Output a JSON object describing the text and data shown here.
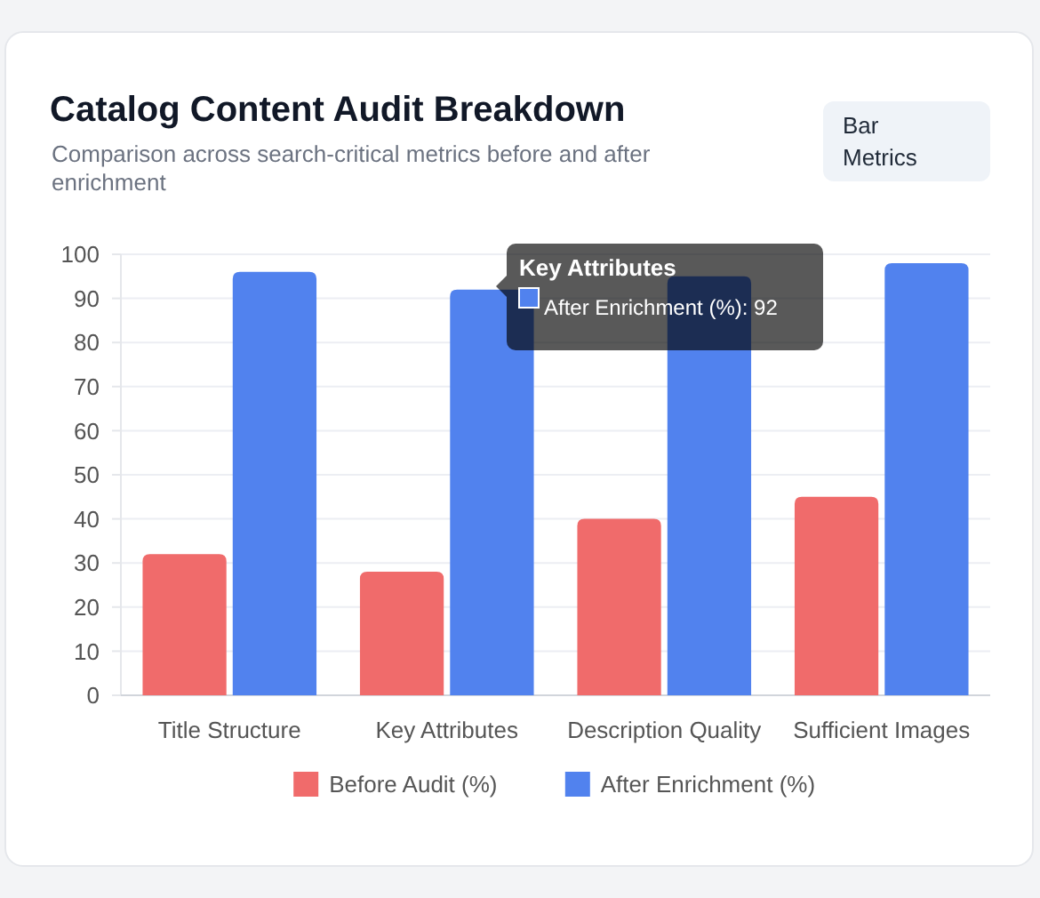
{
  "chart_data": {
    "type": "bar",
    "title": "Catalog Content Audit Breakdown",
    "subtitle": "Comparison across search-critical metrics before and after enrichment",
    "categories": [
      "Title Structure",
      "Key Attributes",
      "Description Quality",
      "Sufficient Images"
    ],
    "series": [
      {
        "name": "Before Audit (%)",
        "color": "#f06b6b",
        "values": [
          32,
          28,
          40,
          45
        ]
      },
      {
        "name": "After Enrichment (%)",
        "color": "#5182ee",
        "values": [
          96,
          92,
          95,
          98
        ]
      }
    ],
    "ylim": [
      0,
      100
    ],
    "yticks": [
      0,
      10,
      20,
      30,
      40,
      50,
      60,
      70,
      80,
      90,
      100
    ],
    "grid": "y",
    "legend": "bottom",
    "annotations": [
      "Bar Metrics",
      "Key Attributes",
      "After Enrichment (%): 92"
    ]
  }
}
